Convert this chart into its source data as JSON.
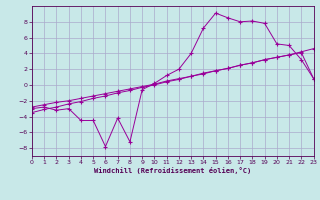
{
  "background_color": "#c8e8e8",
  "grid_color": "#aaaacc",
  "line_color": "#990099",
  "xlim": [
    0,
    23
  ],
  "ylim": [
    -9,
    10
  ],
  "xticks": [
    0,
    1,
    2,
    3,
    4,
    5,
    6,
    7,
    8,
    9,
    10,
    11,
    12,
    13,
    14,
    15,
    16,
    17,
    18,
    19,
    20,
    21,
    22,
    23
  ],
  "yticks": [
    -8,
    -6,
    -4,
    -2,
    0,
    2,
    4,
    6,
    8
  ],
  "xlabel": "Windchill (Refroidissement éolien,°C)",
  "series1": [
    [
      0,
      -2.8
    ],
    [
      1,
      -2.5
    ],
    [
      2,
      -2.2
    ],
    [
      3,
      -2.0
    ],
    [
      4,
      -1.7
    ],
    [
      5,
      -1.4
    ],
    [
      6,
      -1.1
    ],
    [
      7,
      -0.8
    ],
    [
      8,
      -0.5
    ],
    [
      9,
      -0.2
    ],
    [
      10,
      0.1
    ],
    [
      11,
      0.5
    ],
    [
      12,
      0.8
    ],
    [
      13,
      1.1
    ],
    [
      14,
      1.5
    ],
    [
      15,
      1.8
    ],
    [
      16,
      2.1
    ],
    [
      17,
      2.5
    ],
    [
      18,
      2.8
    ],
    [
      19,
      3.2
    ],
    [
      20,
      3.5
    ],
    [
      21,
      3.8
    ],
    [
      22,
      4.1
    ],
    [
      23,
      0.8
    ]
  ],
  "series2": [
    [
      0,
      -3.5
    ],
    [
      1,
      -3.1
    ],
    [
      2,
      -2.8
    ],
    [
      3,
      -2.4
    ],
    [
      4,
      -2.1
    ],
    [
      5,
      -1.7
    ],
    [
      6,
      -1.4
    ],
    [
      7,
      -1.0
    ],
    [
      8,
      -0.7
    ],
    [
      9,
      -0.3
    ],
    [
      10,
      0.0
    ],
    [
      11,
      0.4
    ],
    [
      12,
      0.7
    ],
    [
      13,
      1.1
    ],
    [
      14,
      1.4
    ],
    [
      15,
      1.8
    ],
    [
      16,
      2.1
    ],
    [
      17,
      2.5
    ],
    [
      18,
      2.8
    ],
    [
      19,
      3.2
    ],
    [
      20,
      3.5
    ],
    [
      21,
      3.8
    ],
    [
      22,
      4.2
    ],
    [
      23,
      4.6
    ]
  ],
  "series3": [
    [
      0,
      -3.0
    ],
    [
      1,
      -2.8
    ],
    [
      2,
      -3.2
    ],
    [
      3,
      -3.0
    ],
    [
      4,
      -4.5
    ],
    [
      5,
      -4.5
    ],
    [
      6,
      -7.8
    ],
    [
      7,
      -4.2
    ],
    [
      8,
      -7.2
    ],
    [
      9,
      -0.6
    ],
    [
      10,
      0.2
    ],
    [
      11,
      1.2
    ],
    [
      12,
      2.0
    ],
    [
      13,
      4.0
    ],
    [
      14,
      7.2
    ],
    [
      15,
      9.1
    ],
    [
      16,
      8.5
    ],
    [
      17,
      8.0
    ],
    [
      18,
      8.1
    ],
    [
      19,
      7.8
    ],
    [
      20,
      5.2
    ],
    [
      21,
      5.0
    ],
    [
      22,
      3.2
    ],
    [
      23,
      0.8
    ]
  ]
}
